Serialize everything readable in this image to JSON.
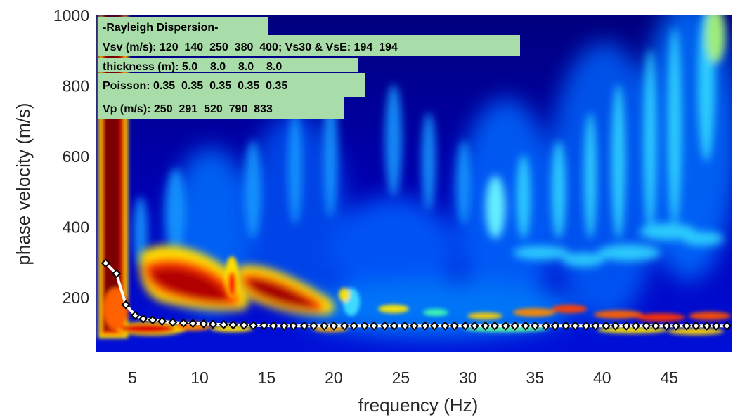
{
  "chart_data": {
    "type": "heatmap",
    "xlabel": "frequency (Hz)",
    "ylabel": "phase velocity (m/s)",
    "xlim": [
      2.3,
      49.7
    ],
    "ylim": [
      45,
      1000
    ],
    "xticks": [
      "5",
      "10",
      "15",
      "20",
      "25",
      "30",
      "35",
      "40",
      "45"
    ],
    "yticks": [
      "200",
      "400",
      "600",
      "800",
      "1000"
    ],
    "xtick_values": [
      5,
      10,
      15,
      20,
      25,
      30,
      35,
      40,
      45
    ],
    "ytick_values": [
      200,
      400,
      600,
      800,
      1000
    ],
    "colormap": "jet",
    "grid": false,
    "info_box": {
      "title": "-Rayleigh Dispersion-",
      "vsv": "Vsv (m/s): 120  140  250  380  400; Vs30 & VsE: 194  194",
      "thickness": "thickness (m): 5.0    8.0    8.0    8.0",
      "poisson": "Poisson: 0.35  0.35  0.35  0.35  0.35",
      "vp": "Vp (m/s): 250  291  520  790  833"
    },
    "dispersion_curve": {
      "x": [
        3.0,
        3.8,
        4.5,
        5.2,
        5.8,
        6.5,
        7.2,
        8.0,
        8.8,
        9.5,
        10.3,
        11.0,
        11.8,
        12.5,
        13.3,
        14.0,
        14.8,
        15.5,
        16.3,
        17.0,
        17.8,
        18.5,
        19.3,
        20.0,
        20.8,
        21.5,
        22.3,
        23.0,
        23.8,
        24.5,
        25.3,
        26.0,
        26.8,
        27.5,
        28.3,
        29.0,
        29.8,
        30.5,
        31.3,
        32.0,
        32.8,
        33.5,
        34.3,
        35.0,
        35.8,
        36.5,
        37.3,
        38.0,
        38.8,
        39.5,
        40.3,
        41.0,
        41.8,
        42.5,
        43.3,
        44.0,
        44.8,
        45.5,
        46.3,
        47.0,
        47.8,
        48.5,
        49.3
      ],
      "y": [
        298,
        268,
        180,
        150,
        140,
        137,
        133,
        130,
        128,
        127,
        126,
        125,
        124,
        123,
        122,
        121,
        121,
        120,
        120,
        120,
        120,
        120,
        120,
        120,
        120,
        120,
        120,
        120,
        120,
        120,
        120,
        120,
        120,
        120,
        120,
        120,
        120,
        120,
        120,
        120,
        120,
        120,
        120,
        120,
        120,
        120,
        120,
        120,
        120,
        120,
        120,
        120,
        120,
        120,
        120,
        120,
        120,
        120,
        120,
        120,
        120,
        120,
        120
      ]
    },
    "colors": {
      "background_dark": "#00006e",
      "background_blue": "#0018d0",
      "cyan": "#36e8ff",
      "yellow": "#ffe800",
      "red": "#d80000",
      "dark_red": "#8a0000",
      "info_box": "#a8dca8",
      "curve_line": "#ffffff",
      "marker_edge": "#000000"
    }
  }
}
